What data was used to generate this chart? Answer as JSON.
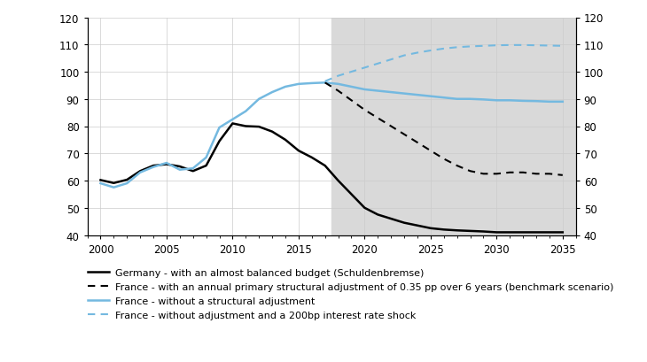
{
  "xlim": [
    1999,
    2036
  ],
  "ylim": [
    40,
    120
  ],
  "yticks": [
    40,
    50,
    60,
    70,
    80,
    90,
    100,
    110,
    120
  ],
  "xticks": [
    2000,
    2005,
    2010,
    2015,
    2020,
    2025,
    2030,
    2035
  ],
  "shaded_region_start": 2017.5,
  "shaded_region_end": 2036,
  "germany_years": [
    2000,
    2001,
    2002,
    2003,
    2004,
    2005,
    2006,
    2007,
    2008,
    2009,
    2010,
    2011,
    2012,
    2013,
    2014,
    2015,
    2016,
    2017,
    2018,
    2019,
    2020,
    2021,
    2022,
    2023,
    2024,
    2025,
    2026,
    2027,
    2028,
    2029,
    2030,
    2031,
    2032,
    2033,
    2034,
    2035
  ],
  "germany_values": [
    60.2,
    59.1,
    60.3,
    63.5,
    65.5,
    66.0,
    65.2,
    63.5,
    65.5,
    74.5,
    81.0,
    80.0,
    79.8,
    78.0,
    75.0,
    71.0,
    68.5,
    65.5,
    60.0,
    55.0,
    50.0,
    47.5,
    46.0,
    44.5,
    43.5,
    42.5,
    42.0,
    41.7,
    41.5,
    41.3,
    41.0,
    41.0,
    41.0,
    41.0,
    41.0,
    41.0
  ],
  "france_bench_years": [
    2017,
    2018,
    2019,
    2020,
    2021,
    2022,
    2023,
    2024,
    2025,
    2026,
    2027,
    2028,
    2029,
    2030,
    2031,
    2032,
    2033,
    2034,
    2035
  ],
  "france_bench_values": [
    96.0,
    93.0,
    89.5,
    86.0,
    83.0,
    80.0,
    77.0,
    74.0,
    71.0,
    68.0,
    65.5,
    63.5,
    62.5,
    62.5,
    63.0,
    63.0,
    62.5,
    62.5,
    62.0
  ],
  "france_noadj_years": [
    2000,
    2001,
    2002,
    2003,
    2004,
    2005,
    2006,
    2007,
    2008,
    2009,
    2010,
    2011,
    2012,
    2013,
    2014,
    2015,
    2016,
    2017,
    2018,
    2019,
    2020,
    2021,
    2022,
    2023,
    2024,
    2025,
    2026,
    2027,
    2028,
    2029,
    2030,
    2031,
    2032,
    2033,
    2034,
    2035
  ],
  "france_noadj_values": [
    59.0,
    57.5,
    59.0,
    63.0,
    65.0,
    66.5,
    64.0,
    64.5,
    68.5,
    79.5,
    82.5,
    85.5,
    90.0,
    92.5,
    94.5,
    95.5,
    95.8,
    96.0,
    95.5,
    94.5,
    93.5,
    93.0,
    92.5,
    92.0,
    91.5,
    91.0,
    90.5,
    90.0,
    90.0,
    89.8,
    89.5,
    89.5,
    89.3,
    89.2,
    89.0,
    89.0
  ],
  "france_shock_years": [
    2017,
    2018,
    2019,
    2020,
    2021,
    2022,
    2023,
    2024,
    2025,
    2026,
    2027,
    2028,
    2029,
    2030,
    2031,
    2032,
    2033,
    2034,
    2035
  ],
  "france_shock_values": [
    96.5,
    98.5,
    100.0,
    101.5,
    103.0,
    104.5,
    106.0,
    107.0,
    107.8,
    108.5,
    109.0,
    109.3,
    109.5,
    109.7,
    109.8,
    109.8,
    109.7,
    109.6,
    109.5
  ],
  "germany_color": "#000000",
  "france_bench_color": "#000000",
  "france_noadj_color": "#74b9e0",
  "france_shock_color": "#74b9e0",
  "shaded_color": "#d9d9d9",
  "legend_labels": [
    "Germany - with an almost balanced budget (Schuldenbremse)",
    "France - with an annual primary structural adjustment of 0.35 pp over 6 years (benchmark scenario)",
    "France - without a structural adjustment",
    "France - without adjustment and a 200bp interest rate shock"
  ],
  "legend_fontsize": 8.0,
  "tick_fontsize": 8.5
}
